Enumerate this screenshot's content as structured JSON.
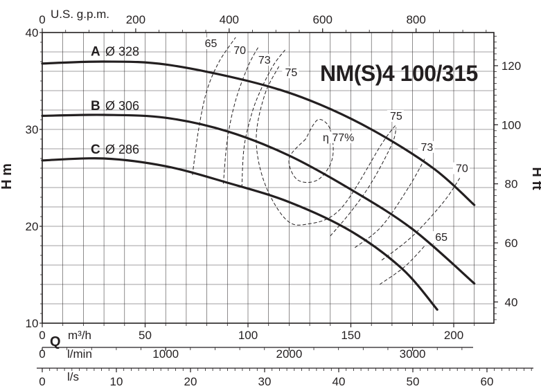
{
  "chart_data": {
    "type": "line",
    "title": "NM(S)4 100/315",
    "x_primary": {
      "unit": "m³/h",
      "label": "Q",
      "range": [
        0,
        220
      ],
      "ticks": [
        0,
        50,
        100,
        150,
        200
      ]
    },
    "x_secondary": [
      {
        "unit": "l/min",
        "ticks": [
          0,
          1000,
          2000,
          3000
        ]
      },
      {
        "unit": "l/s",
        "range": [
          0,
          61
        ],
        "ticks": [
          0,
          10,
          20,
          30,
          40,
          50,
          60
        ]
      },
      {
        "unit": "U.S. g.p.m.",
        "ticks": [
          0,
          200,
          400,
          600,
          800
        ]
      }
    ],
    "y_left": {
      "label": "H m",
      "range": [
        10,
        40
      ],
      "ticks": [
        10,
        20,
        30,
        40
      ]
    },
    "y_right": {
      "label": "H ft",
      "ticks": [
        40,
        60,
        80,
        100,
        120
      ]
    },
    "series": [
      {
        "name": "A",
        "diameter": "Ø 328",
        "x": [
          0,
          30,
          60,
          100,
          130,
          160,
          190,
          210
        ],
        "y": [
          36.8,
          37.0,
          36.7,
          35.0,
          33.0,
          30.0,
          26.0,
          22.2
        ]
      },
      {
        "name": "B",
        "diameter": "Ø 306",
        "x": [
          0,
          30,
          60,
          90,
          120,
          150,
          180,
          210
        ],
        "y": [
          31.4,
          31.5,
          31.2,
          29.8,
          27.3,
          23.8,
          19.7,
          14.1
        ]
      },
      {
        "name": "C",
        "diameter": "Ø 286",
        "x": [
          0,
          30,
          60,
          90,
          120,
          150,
          175,
          192
        ],
        "y": [
          26.8,
          27.0,
          26.2,
          24.5,
          22.5,
          19.5,
          15.6,
          11.4
        ]
      }
    ],
    "efficiency_contours": [
      {
        "label": "65",
        "x": [
          73,
          76,
          80,
          86,
          94
        ],
        "y": [
          25.3,
          30.0,
          34.0,
          37.0,
          39.5
        ]
      },
      {
        "label": "70",
        "x": [
          88,
          90,
          94,
          100,
          105
        ],
        "y": [
          24.4,
          29.0,
          33.0,
          36.5,
          38.5
        ]
      },
      {
        "label": "73",
        "x": [
          97,
          98,
          101,
          105,
          112,
          118
        ],
        "y": [
          24.0,
          28.0,
          31.0,
          33.5,
          36.5,
          38.2
        ]
      },
      {
        "label": "75",
        "x": [
          115,
          108,
          104,
          108,
          118,
          128,
          145,
          165,
          172
        ],
        "y": [
          36.5,
          33.5,
          29.0,
          24.5,
          20.8,
          20.2,
          21.8,
          28.5,
          30.5
        ]
      },
      {
        "label": "η 77%",
        "x": [
          128,
          120,
          124,
          134,
          141,
          140,
          134,
          128
        ],
        "y": [
          29.0,
          27.0,
          24.8,
          24.8,
          27.0,
          30.0,
          31.0,
          29.0
        ]
      },
      {
        "label": "75 ",
        "x": [
          140,
          150,
          160,
          170,
          172
        ],
        "y": [
          19.0,
          21.5,
          24.5,
          28.5,
          30.2
        ]
      },
      {
        "label": "73 ",
        "x": [
          152,
          165,
          178,
          186
        ],
        "y": [
          17.8,
          20.0,
          24.0,
          27.0
        ]
      },
      {
        "label": "70 ",
        "x": [
          165,
          180,
          195,
          203
        ],
        "y": [
          16.5,
          19.0,
          22.5,
          25.0
        ]
      },
      {
        "label": "65 ",
        "x": [
          164,
          176,
          186
        ],
        "y": [
          14.0,
          15.8,
          18.0
        ]
      }
    ],
    "grid": true,
    "curve_labels": [
      {
        "letter": "A",
        "diameter": "Ø 328"
      },
      {
        "letter": "B",
        "diameter": "Ø 306"
      },
      {
        "letter": "C",
        "diameter": "Ø 286"
      }
    ],
    "colors": {
      "curve": "#231f20",
      "grid": "#231f20",
      "axis": "#231f20"
    }
  }
}
